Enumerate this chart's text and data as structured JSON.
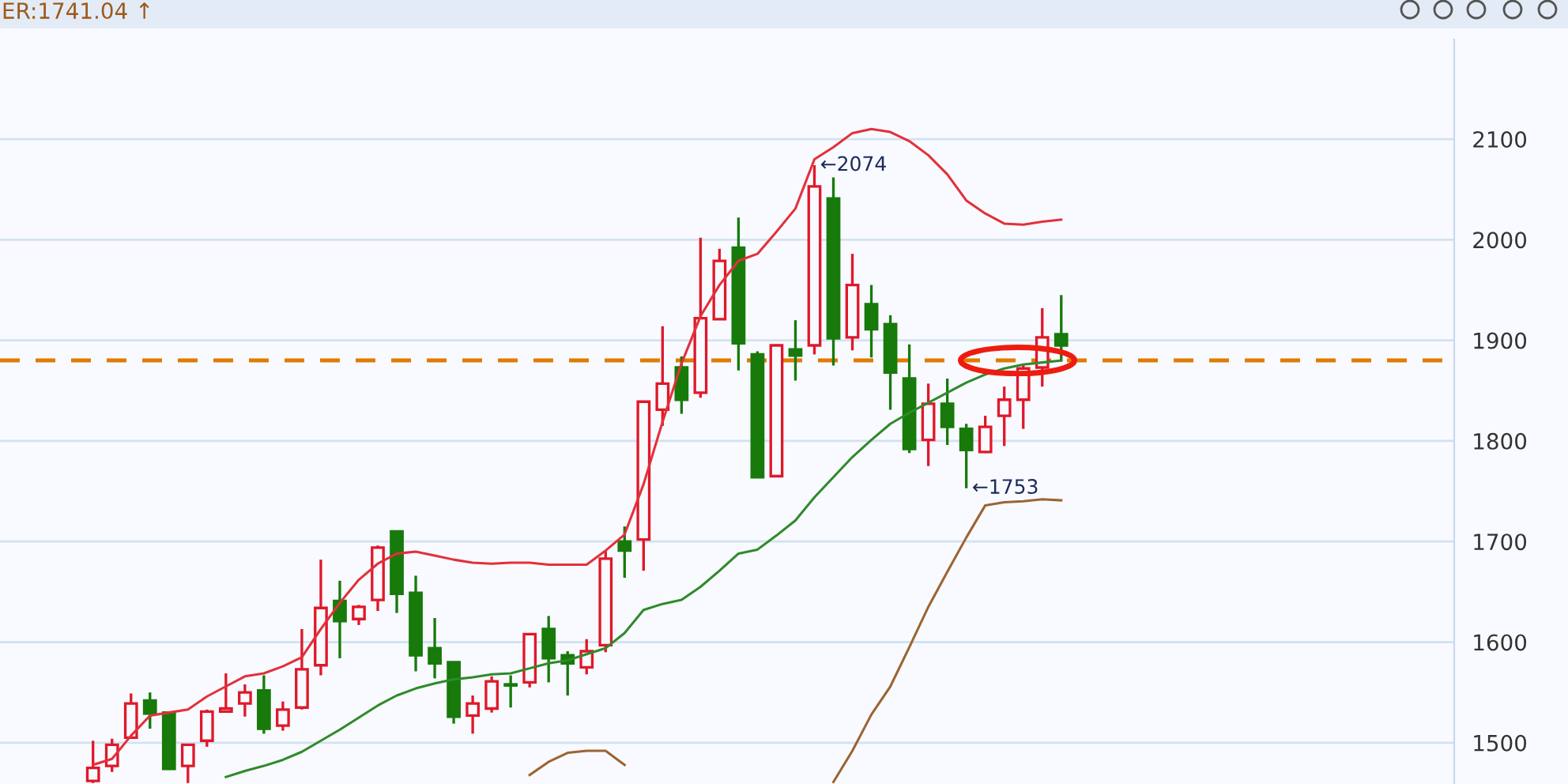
{
  "chart_data": {
    "type": "candlestick",
    "categories": [
      null,
      null,
      null,
      null,
      null,
      null,
      null,
      null,
      null,
      null,
      null,
      null,
      null,
      null,
      null,
      null,
      null,
      null,
      null,
      null,
      null,
      null,
      null,
      null,
      null,
      null,
      null,
      null,
      null,
      null,
      null,
      null,
      null,
      null,
      null,
      null,
      null,
      null,
      null,
      null,
      null,
      null,
      null,
      null,
      null,
      null,
      null,
      null,
      null,
      null,
      null,
      null
    ],
    "ohlc": [
      [
        1462,
        1502,
        1460,
        1475
      ],
      [
        1477,
        1504,
        1471,
        1498
      ],
      [
        1505,
        1549,
        1505,
        1539
      ],
      [
        1542,
        1550,
        1514,
        1529
      ],
      [
        1530,
        1531,
        1473,
        1474
      ],
      [
        1477,
        1499,
        1460,
        1498
      ],
      [
        1502,
        1533,
        1496,
        1531
      ],
      [
        1531,
        1569,
        1530,
        1534
      ],
      [
        1539,
        1558,
        1526,
        1550
      ],
      [
        1552,
        1567,
        1509,
        1514
      ],
      [
        1517,
        1541,
        1512,
        1533
      ],
      [
        1535,
        1613,
        1533,
        1573
      ],
      [
        1577,
        1682,
        1567,
        1634
      ],
      [
        1641,
        1661,
        1584,
        1621
      ],
      [
        1623,
        1637,
        1617,
        1635
      ],
      [
        1642,
        1696,
        1631,
        1694
      ],
      [
        1710,
        1710,
        1629,
        1648
      ],
      [
        1649,
        1666,
        1571,
        1587
      ],
      [
        1594,
        1624,
        1564,
        1579
      ],
      [
        1580,
        1580,
        1519,
        1526
      ],
      [
        1527,
        1547,
        1509,
        1539
      ],
      [
        1534,
        1566,
        1530,
        1561
      ],
      [
        1558,
        1567,
        1535,
        1557
      ],
      [
        1560,
        1609,
        1555,
        1608
      ],
      [
        1613,
        1626,
        1560,
        1584
      ],
      [
        1587,
        1591,
        1547,
        1579
      ],
      [
        1575,
        1603,
        1568,
        1591
      ],
      [
        1597,
        1691,
        1590,
        1683
      ],
      [
        1700,
        1715,
        1664,
        1691
      ],
      [
        1702,
        1839,
        1671,
        1839
      ],
      [
        1831,
        1914,
        1815,
        1857
      ],
      [
        1873,
        1884,
        1827,
        1841
      ],
      [
        1848,
        2002,
        1843,
        1922
      ],
      [
        1921,
        1991,
        1921,
        1979
      ],
      [
        1992,
        2022,
        1870,
        1897
      ],
      [
        1886,
        1889,
        1764,
        1764
      ],
      [
        1765,
        1896,
        1765,
        1895
      ],
      [
        1891,
        1920,
        1860,
        1885
      ],
      [
        1895,
        2074,
        1886,
        2053
      ],
      [
        2041,
        2062,
        1875,
        1902
      ],
      [
        1903,
        1986,
        1890,
        1955
      ],
      [
        1936,
        1955,
        1883,
        1911
      ],
      [
        1916,
        1925,
        1831,
        1868
      ],
      [
        1862,
        1896,
        1788,
        1792
      ],
      [
        1801,
        1857,
        1775,
        1837
      ],
      [
        1837,
        1862,
        1796,
        1814
      ],
      [
        1812,
        1817,
        1753,
        1791
      ],
      [
        1789,
        1825,
        1788,
        1814
      ],
      [
        1825,
        1854,
        1795,
        1841
      ],
      [
        1841,
        1876,
        1812,
        1872
      ],
      [
        1873,
        1932,
        1854,
        1903
      ],
      [
        1906,
        1945,
        1879,
        1895
      ]
    ],
    "colors": [
      "#e0182a",
      "#e0182a",
      "#e0182a",
      "#177a0b",
      "#177a0b",
      "#e0182a",
      "#e0182a",
      "#e0182a",
      "#e0182a",
      "#177a0b",
      "#e0182a",
      "#e0182a",
      "#e0182a",
      "#177a0b",
      "#e0182a",
      "#e0182a",
      "#177a0b",
      "#177a0b",
      "#177a0b",
      "#177a0b",
      "#e0182a",
      "#e0182a",
      "#177a0b",
      "#e0182a",
      "#177a0b",
      "#177a0b",
      "#e0182a",
      "#e0182a",
      "#177a0b",
      "#e0182a",
      "#e0182a",
      "#177a0b",
      "#e0182a",
      "#e0182a",
      "#177a0b",
      "#177a0b",
      "#e0182a",
      "#177a0b",
      "#e0182a",
      "#177a0b",
      "#e0182a",
      "#177a0b",
      "#177a0b",
      "#177a0b",
      "#e0182a",
      "#177a0b",
      "#177a0b",
      "#e0182a",
      "#e0182a",
      "#e0182a",
      "#e0182a",
      "#177a0b"
    ],
    "series": [
      {
        "type": "line",
        "color": "#e3303a",
        "values": [
          1478,
          1484,
          1507,
          1527,
          1530,
          1533,
          1546,
          1556,
          1566,
          1569,
          1576,
          1585,
          1613,
          1639,
          1662,
          1678,
          1688,
          1690,
          1686,
          1682,
          1679,
          1678,
          1679,
          1679,
          1677,
          1677,
          1677,
          1691,
          1707,
          1757,
          1819,
          1877,
          1924,
          1955,
          1979,
          1986,
          2008,
          2031,
          2080,
          2092,
          2106,
          2110,
          2107,
          2098,
          2084,
          2065,
          2039,
          2026,
          2016,
          2015,
          2018,
          2020
        ]
      },
      {
        "type": "line",
        "color": "#2f8a2a",
        "values": [
          null,
          null,
          null,
          null,
          null,
          null,
          null,
          1466,
          1472,
          1477,
          1483,
          1491,
          1502,
          1513,
          1525,
          1537,
          1547,
          1554,
          1559,
          1563,
          1565,
          1568,
          1569,
          1574,
          1579,
          1582,
          1588,
          1594,
          1609,
          1632,
          1638,
          1642,
          1655,
          1671,
          1688,
          1692,
          1706,
          1721,
          1744,
          1764,
          1784,
          1801,
          1817,
          1828,
          1838,
          1848,
          1858,
          1866,
          1872,
          1876,
          1878,
          1880
        ]
      },
      {
        "type": "line",
        "color": "#9c6432",
        "values": [
          null,
          null,
          null,
          null,
          null,
          null,
          null,
          null,
          null,
          null,
          null,
          null,
          null,
          null,
          null,
          null,
          null,
          null,
          null,
          null,
          null,
          null,
          null,
          1468,
          1481,
          1490,
          1492,
          1492,
          1478,
          null,
          null,
          null,
          null,
          null,
          null,
          null,
          null,
          null,
          null,
          1461,
          1492,
          1528,
          1556,
          1595,
          1635,
          1670,
          1704,
          1736,
          1739,
          1740,
          1742,
          1741
        ]
      }
    ],
    "ylim": [
      1459,
      2199
    ],
    "yticks": [
      1500,
      1600,
      1700,
      1800,
      1900,
      2000,
      2100
    ],
    "grid": "y",
    "ref_lines": [
      {
        "axis": "y",
        "value": 1880,
        "color": "#e07b00",
        "line_style": "dashed"
      }
    ],
    "annotations": [
      "ER:1741.04 ↑",
      "←2074",
      "←1753"
    ]
  }
}
